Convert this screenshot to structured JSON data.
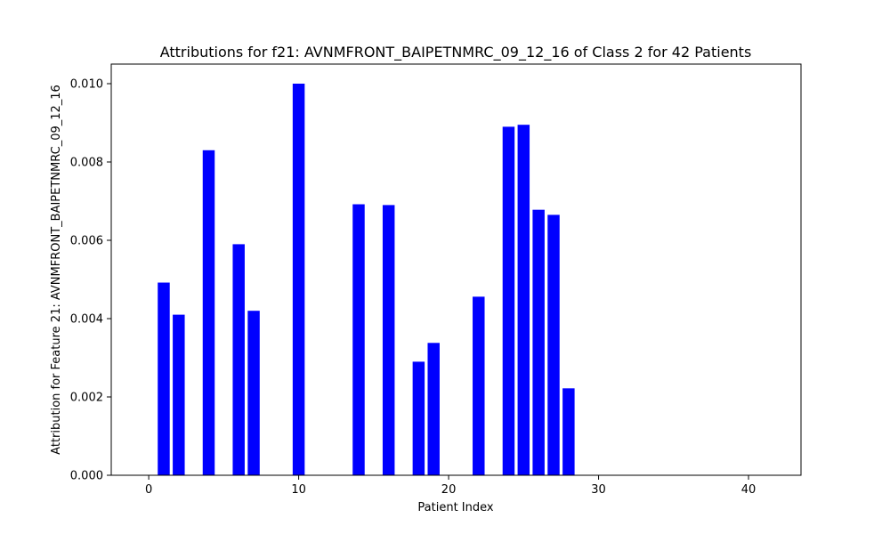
{
  "chart_data": {
    "type": "bar",
    "title": "Attributions for f21: AVNMFRONT_BAIPETNMRC_09_12_16 of Class 2 for 42 Patients",
    "xlabel": "Patient Index",
    "ylabel": "Attribution for Feature 21: AVNMFRONT_BAIPETNMRC_09_12_16",
    "xlim": [
      -2.5,
      43.5
    ],
    "ylim": [
      0,
      0.0105
    ],
    "x_ticks": [
      0,
      10,
      20,
      30,
      40
    ],
    "y_ticks": [
      0.0,
      0.002,
      0.004,
      0.006,
      0.008,
      0.01
    ],
    "y_tick_labels": [
      "0.000",
      "0.002",
      "0.004",
      "0.006",
      "0.008",
      "0.010"
    ],
    "bar_color": "#0000ff",
    "bars": [
      {
        "x": 1,
        "value": 0.00492
      },
      {
        "x": 2,
        "value": 0.0041
      },
      {
        "x": 4,
        "value": 0.0083
      },
      {
        "x": 6,
        "value": 0.0059
      },
      {
        "x": 7,
        "value": 0.0042
      },
      {
        "x": 10,
        "value": 0.01
      },
      {
        "x": 14,
        "value": 0.00692
      },
      {
        "x": 16,
        "value": 0.0069
      },
      {
        "x": 18,
        "value": 0.0029
      },
      {
        "x": 19,
        "value": 0.00338
      },
      {
        "x": 22,
        "value": 0.00456
      },
      {
        "x": 24,
        "value": 0.0089
      },
      {
        "x": 25,
        "value": 0.00895
      },
      {
        "x": 26,
        "value": 0.00678
      },
      {
        "x": 27,
        "value": 0.00665
      },
      {
        "x": 28,
        "value": 0.00222
      }
    ]
  }
}
